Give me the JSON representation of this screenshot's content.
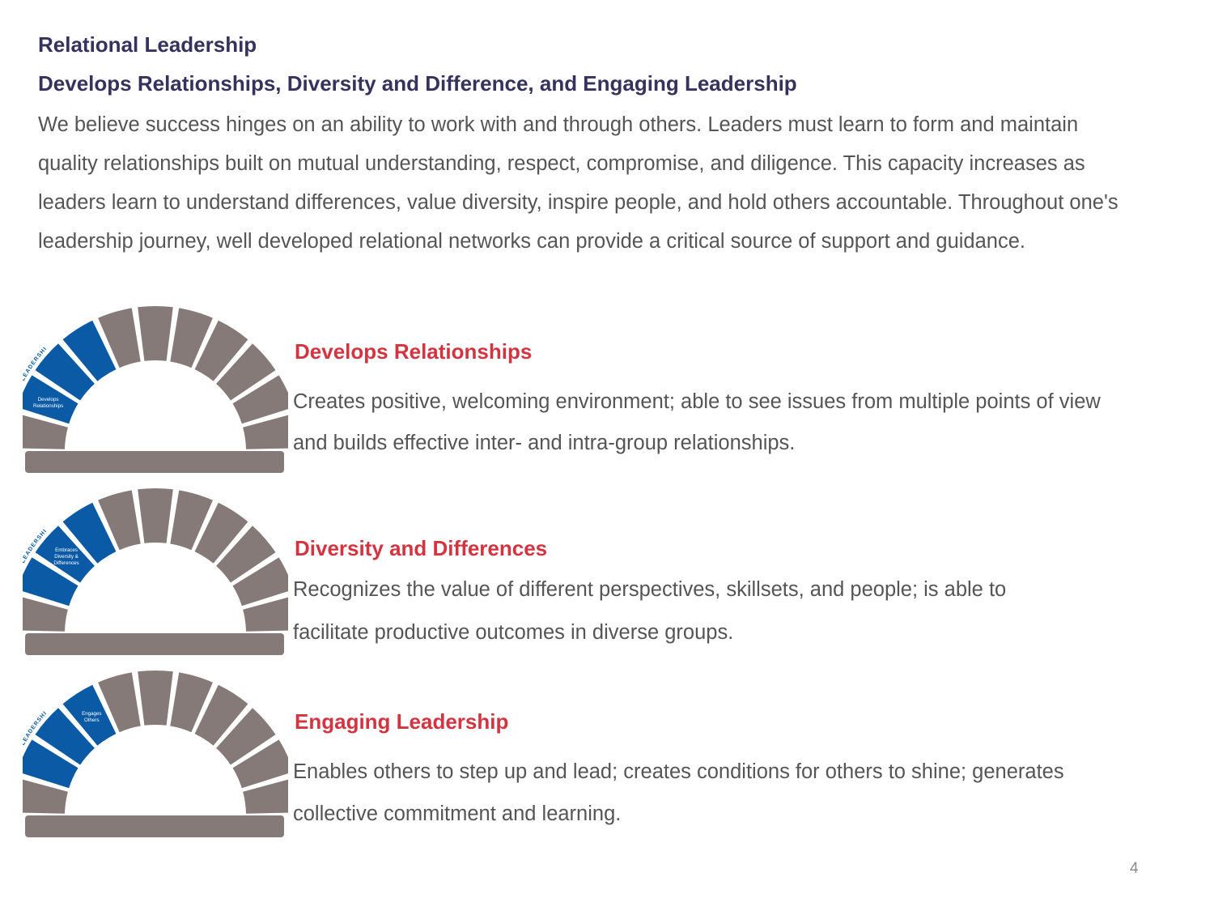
{
  "page": {
    "title": "Relational Leadership",
    "subtitle": "Develops Relationships, Diversity and Difference, and Engaging Leadership",
    "intro": "We believe success hinges on an ability to work with and through others. Leaders must learn to form and maintain quality relationships built on mutual understanding, respect, compromise, and diligence. This capacity increases as leaders learn to understand differences, value diversity, inspire people, and hold others accountable. Throughout one's leadership journey, well developed relational networks can provide a critical source of support and guidance.",
    "page_number": "4"
  },
  "colors": {
    "heading": "#35325e",
    "section_title": "#d4343f",
    "body_text": "#555555",
    "stone_blue": "#0b5aa5",
    "stone_gray": "#857a78"
  },
  "sections": [
    {
      "title": "Develops Relationships",
      "description": "Creates positive, welcoming environment; able to see issues from multiple points of view and builds effective inter- and intra-group relationships.",
      "arch_label": "RELATIONAL LEADERSHIP",
      "stone_label": [
        "Develops",
        "Relationships"
      ],
      "highlight_stone": 0
    },
    {
      "title": "Diversity and Differences",
      "description": "Recognizes the value of different perspectives, skillsets, and people; is able to facilitate productive outcomes in diverse groups.",
      "arch_label": "RELATIONAL LEADERSHIP",
      "stone_label": [
        "Embraces",
        "Diversity &",
        "Differences"
      ],
      "highlight_stone": 1
    },
    {
      "title": "Engaging Leadership",
      "description": "Enables others to step up and lead; creates conditions for others to shine; generates collective commitment and learning.",
      "arch_label": "RELATIONAL LEADERSHIP",
      "stone_label": [
        "Engages",
        "Others"
      ],
      "highlight_stone": 2
    }
  ]
}
